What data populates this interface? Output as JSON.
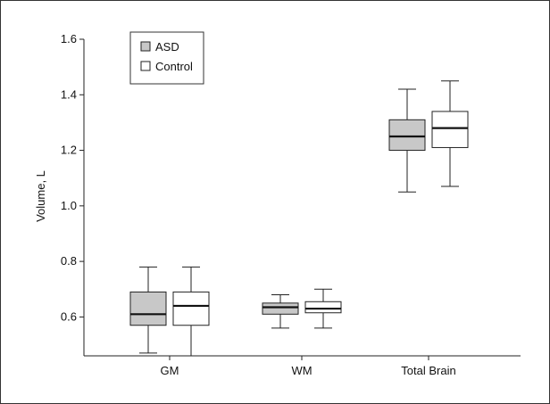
{
  "chart_data": {
    "type": "box",
    "title": "",
    "xlabel": "",
    "ylabel": "Volume, L",
    "ylim": [
      0.46,
      1.6
    ],
    "yticks": [
      "0.6",
      "0.8",
      "1.0",
      "1.2",
      "1.4",
      "1.6"
    ],
    "ytick_values": [
      0.6,
      0.8,
      1.0,
      1.2,
      1.4,
      1.6
    ],
    "grid": false,
    "legend_position": "top-left",
    "categories": [
      "GM",
      "WM",
      "Total Brain"
    ],
    "series": [
      {
        "name": "ASD",
        "color": "#c8c8c8",
        "boxes": [
          {
            "whisker_low": 0.47,
            "q1": 0.57,
            "median": 0.61,
            "q3": 0.69,
            "whisker_high": 0.78
          },
          {
            "whisker_low": 0.56,
            "q1": 0.61,
            "median": 0.635,
            "q3": 0.65,
            "whisker_high": 0.68
          },
          {
            "whisker_low": 1.05,
            "q1": 1.2,
            "median": 1.25,
            "q3": 1.31,
            "whisker_high": 1.42
          }
        ]
      },
      {
        "name": "Control",
        "color": "#ffffff",
        "boxes": [
          {
            "whisker_low": 0.46,
            "q1": 0.57,
            "median": 0.64,
            "q3": 0.69,
            "whisker_high": 0.78
          },
          {
            "whisker_low": 0.56,
            "q1": 0.615,
            "median": 0.63,
            "q3": 0.655,
            "whisker_high": 0.7
          },
          {
            "whisker_low": 1.07,
            "q1": 1.21,
            "median": 1.28,
            "q3": 1.34,
            "whisker_high": 1.45
          }
        ]
      }
    ]
  }
}
